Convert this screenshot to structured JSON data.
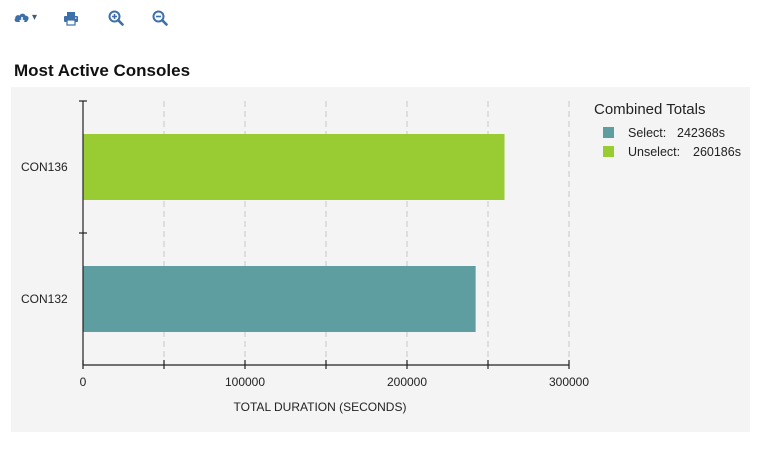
{
  "toolbar": {
    "cloud_icon": "cloud-download-icon",
    "caret_label": "▾",
    "print_icon": "print-icon",
    "zoom_in_icon": "zoom-in-icon",
    "zoom_out_icon": "zoom-out-icon",
    "icon_color": "#3d6fa8"
  },
  "page_title": "Most Active Consoles",
  "chart_data": {
    "type": "bar",
    "orientation": "horizontal",
    "categories": [
      "CON136",
      "CON132"
    ],
    "values": [
      260186,
      242368
    ],
    "bar_colors": [
      "#99cc33",
      "#5f9ea0"
    ],
    "xlabel": "TOTAL DURATION (SECONDS)",
    "ylabel": "",
    "xlim": [
      0,
      300000
    ],
    "x_ticks": [
      0,
      100000,
      200000,
      300000
    ],
    "x_tick_labels": [
      "0",
      "100000",
      "200000",
      "300000"
    ],
    "minor_gridlines": true,
    "grid": "vertical dashed",
    "legend": {
      "position": "right",
      "title": "Combined Totals",
      "entries": [
        {
          "name": "Select",
          "label": "Select:",
          "value": "242368s",
          "color": "#5f9ea0"
        },
        {
          "name": "Unselect",
          "label": "Unselect:",
          "value": "260186s",
          "color": "#99cc33"
        }
      ]
    }
  }
}
